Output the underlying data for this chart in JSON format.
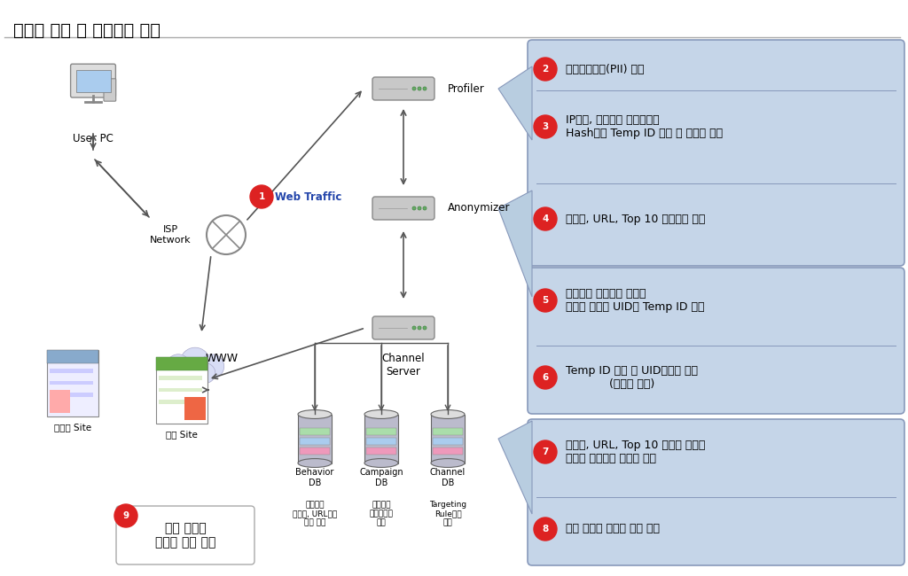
{
  "title": "트래픽 분석 및 광고노출 과정",
  "title_fontsize": 14,
  "bg_color": "#ffffff",
  "box_bg": "#c5d5e8",
  "box_edge": "#8899bb",
  "arrow_color": "#555555",
  "red_circle_color": "#dd2222",
  "step_labels": {
    "1": "Web Traffic",
    "2": "개인식별정보(PII) 제거",
    "3": "IP주소, 브라우저 타입정보를\nHash하여 Temp ID 생성 후 이용자 관리",
    "4": "검색어, URL, Top 10 키워드만 추출",
    "5": "이용자가 제휴매체 방문시\n쿠키에 저장된 UID와 Temp ID 매칭",
    "6": "Temp ID 삭제 후 UID만으로 관리\n(익명성 보장)",
    "7": "검색어, URL, Top 10 키워드 정보와\n타케팅 그룹과의 연관성 매칭",
    "8": "제휴 매체에 맞춤형 광고 전송",
    "9": "제휴 영역에\n맞춤형 광고 노출"
  },
  "node_labels": {
    "userpc": "User PC",
    "isp": "ISP\nNetwork",
    "www": "WWW",
    "profiler": "Profiler",
    "anonymizer": "Anonymizer",
    "channel_server": "Channel\nServer",
    "behavior_db": "Behavior\nDB",
    "campaign_db": "Campaign\nDB",
    "channel_db": "Channel\nDB",
    "biz_site": "비제휴 Site",
    "partner_site": "제휴 Site",
    "behavior_desc": "이용자의\n검색어, URL정보\n조합 저장",
    "campaign_desc": "광고주의\n광고캠페인\n저장",
    "channel_desc": "Targeting\nRule정보\n저장"
  }
}
